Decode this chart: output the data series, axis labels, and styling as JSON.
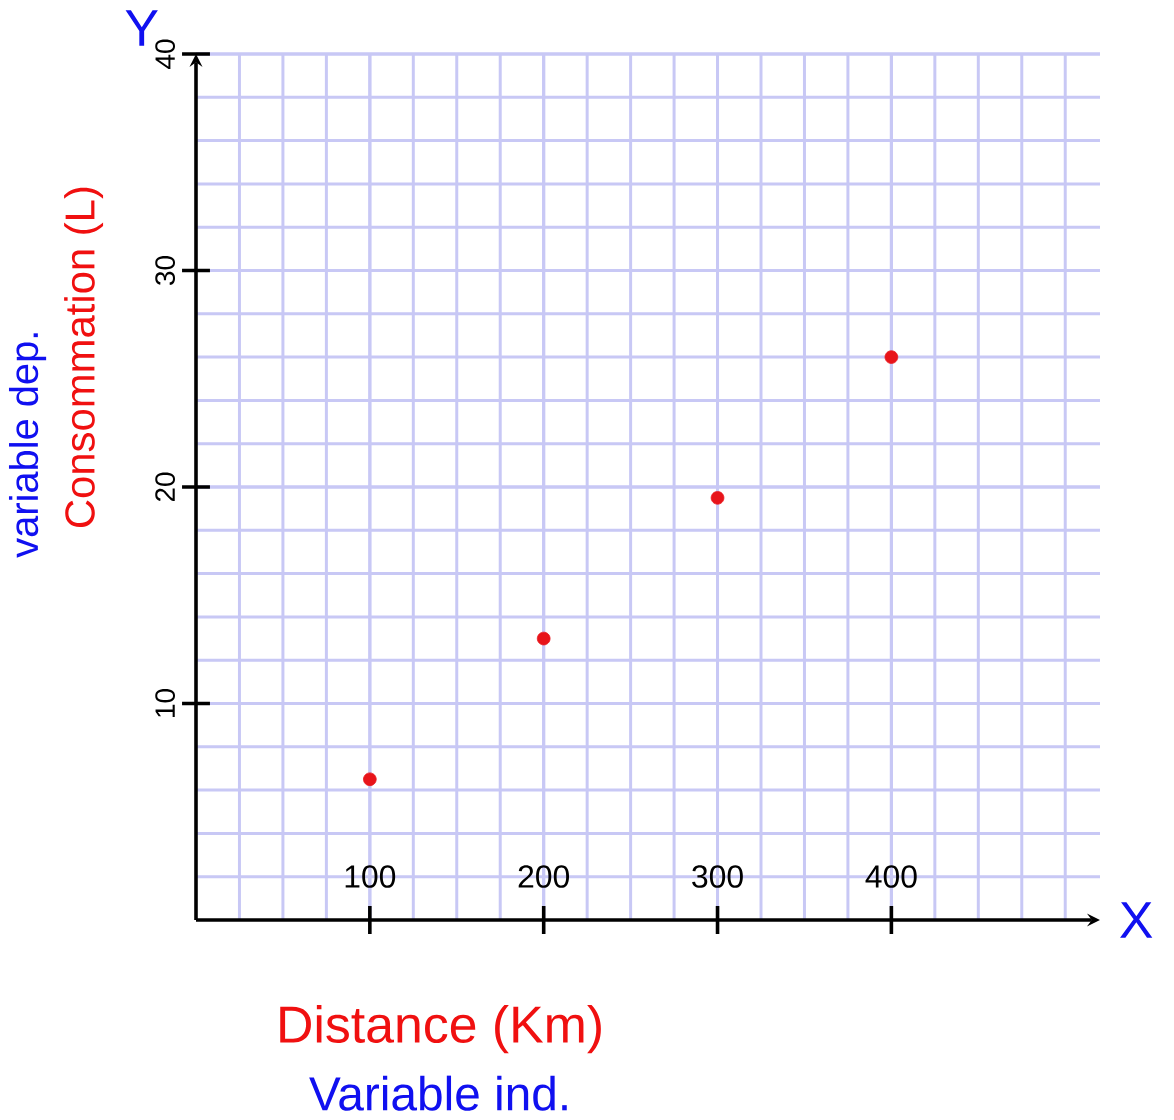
{
  "chart_data": {
    "type": "scatter",
    "xlabel": "Distance (Km)",
    "ylabel": "Consommation (L)",
    "annotations": [
      "variable dep.",
      "Variable ind.",
      "Y",
      "X"
    ],
    "x": [
      100,
      200,
      300,
      400
    ],
    "values": [
      6.5,
      13,
      19.5,
      26
    ],
    "color": "#e8141a",
    "marker": "circle",
    "xlim": [
      0,
      520
    ],
    "ylim": [
      0,
      40
    ],
    "xticks": [
      100,
      200,
      300,
      400
    ],
    "yticks": [
      10,
      20,
      30,
      40
    ],
    "grid": true
  }
}
